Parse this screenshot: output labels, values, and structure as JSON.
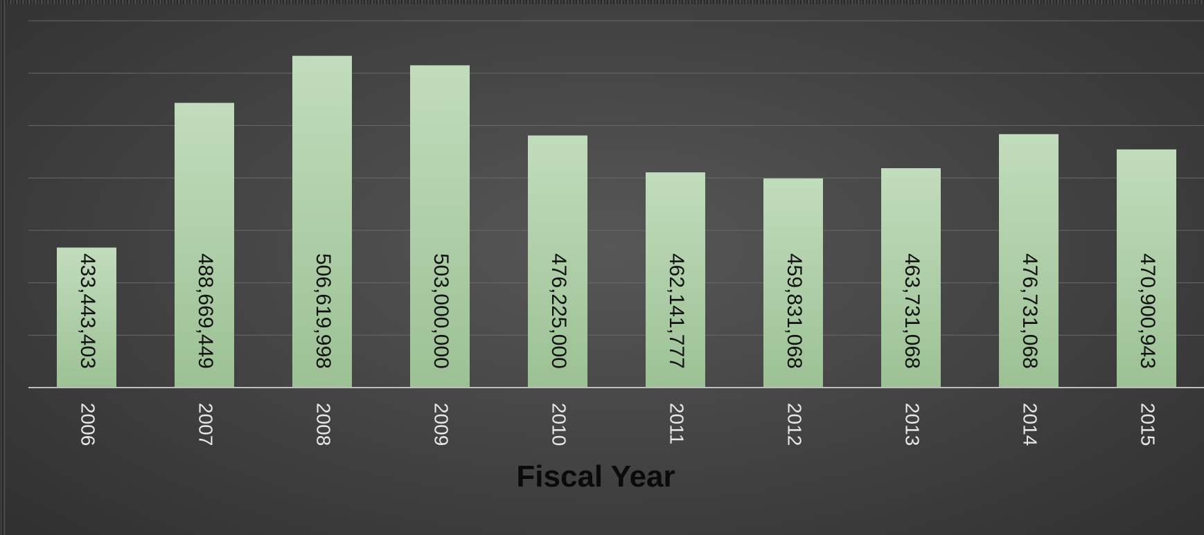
{
  "chart_data": {
    "type": "bar",
    "xlabel": "Fiscal Year",
    "ylabel": "",
    "categories": [
      "2006",
      "2007",
      "2008",
      "2009",
      "2010",
      "2011",
      "2012",
      "2013",
      "2014",
      "2015"
    ],
    "values": [
      433443403,
      488669449,
      506619998,
      503000000,
      476225000,
      462141777,
      459831068,
      463731068,
      476731068,
      470900943
    ],
    "data_labels": [
      "433,443,403",
      "488,669,449",
      "506,619,998",
      "503,000,000",
      "476,225,000",
      "462,141,777",
      "459,831,068",
      "463,731,068",
      "476,731,068",
      "470,900,943"
    ],
    "ylim": [
      380000000,
      520000000
    ],
    "grid": true,
    "legend": "none",
    "colors": {
      "bar_top": "#c1dcbc",
      "bar_bottom": "#9cc194",
      "gridline": "#6a6a6a",
      "axis": "#bdbdbd",
      "tick_label": "#e8e8e8",
      "data_label": "#111111",
      "xlabel": "#0a0a0a"
    }
  }
}
